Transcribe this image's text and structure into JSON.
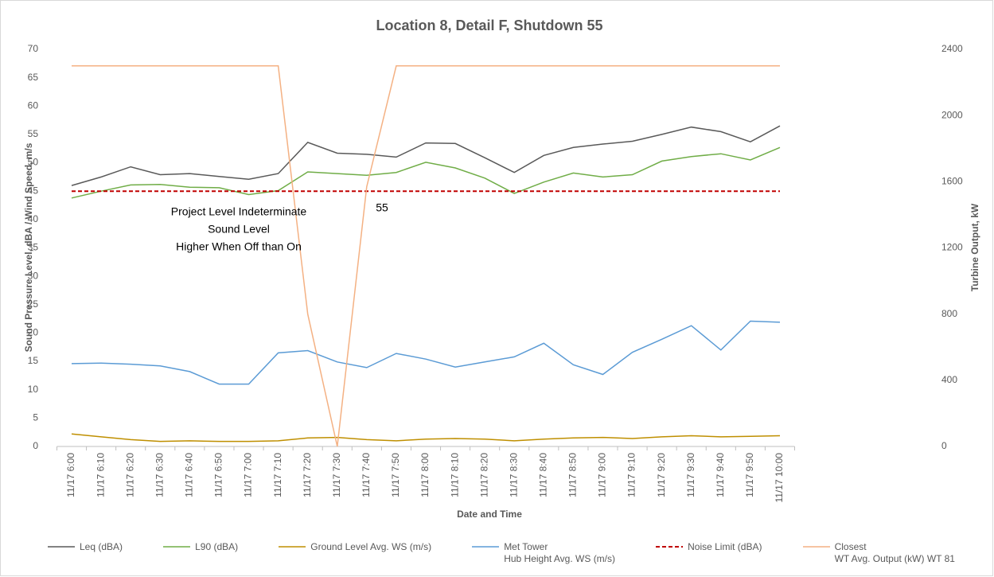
{
  "chart_data": {
    "type": "line",
    "title": "Location 8, Detail F, Shutdown 55",
    "x_label": "Date and Time",
    "y_label": "Sound Pressure Level, dBA / Wind Speed, m/s",
    "y2_label": "Turbine Output, kW",
    "categories": [
      "11/17 6:00",
      "11/17 6:10",
      "11/17 6:20",
      "11/17 6:30",
      "11/17 6:40",
      "11/17 6:50",
      "11/17 7:00",
      "11/17 7:10",
      "11/17 7:20",
      "11/17 7:30",
      "11/17 7:40",
      "11/17 7:50",
      "11/17 8:00",
      "11/17 8:10",
      "11/17 8:20",
      "11/17 8:30",
      "11/17 8:40",
      "11/17 8:50",
      "11/17 9:00",
      "11/17 9:10",
      "11/17 9:20",
      "11/17 9:30",
      "11/17 9:40",
      "11/17 9:50",
      "11/17 10:00"
    ],
    "ylim": [
      0,
      70
    ],
    "yticks": [
      0,
      5,
      10,
      15,
      20,
      25,
      30,
      35,
      40,
      45,
      50,
      55,
      60,
      65,
      70
    ],
    "y2lim": [
      0,
      2400
    ],
    "y2ticks": [
      0,
      400,
      800,
      1200,
      1600,
      2000,
      2400
    ],
    "grid": false,
    "legend": "bottom",
    "annotations": [
      "Project Level Indeterminate",
      "Sound Level",
      "Higher When Off than On",
      "55"
    ],
    "series": [
      {
        "name": "Leq (dBA)",
        "color": "#595959",
        "values": [
          46.0,
          47.5,
          49.3,
          47.9,
          48.1,
          47.6,
          47.1,
          48.1,
          53.6,
          51.7,
          51.5,
          51.0,
          53.5,
          53.4,
          50.9,
          48.3,
          51.3,
          52.7,
          53.3,
          53.8,
          55.0,
          56.3,
          55.5,
          53.7,
          56.5
        ]
      },
      {
        "name": "L90 (dBA)",
        "color": "#70ad47",
        "values": [
          43.8,
          45.0,
          46.1,
          46.2,
          45.7,
          45.6,
          44.4,
          45.1,
          48.4,
          48.1,
          47.8,
          48.3,
          50.1,
          49.1,
          47.3,
          44.6,
          46.6,
          48.2,
          47.5,
          47.9,
          50.3,
          51.1,
          51.6,
          50.5,
          52.7
        ]
      },
      {
        "name": "Ground Level Avg. WS (m/s)",
        "color": "#bf8f00",
        "values": [
          2.2,
          1.7,
          1.2,
          0.9,
          1.0,
          0.9,
          0.9,
          1.0,
          1.5,
          1.6,
          1.2,
          1.0,
          1.3,
          1.4,
          1.3,
          1.0,
          1.3,
          1.5,
          1.6,
          1.4,
          1.7,
          1.9,
          1.7,
          1.8,
          1.9
        ]
      },
      {
        "name": "Met Tower\nHub Height Avg. WS (m/s)",
        "color": "#5b9bd5",
        "values": [
          14.6,
          14.7,
          14.5,
          14.2,
          13.2,
          11.0,
          11.0,
          16.5,
          16.9,
          14.9,
          13.9,
          16.4,
          15.4,
          14.0,
          14.9,
          15.8,
          18.2,
          14.4,
          12.7,
          16.6,
          18.9,
          21.3,
          17.0,
          22.1,
          21.9
        ]
      },
      {
        "name": "Noise Limit (dBA)",
        "color": "#c00000",
        "dashed": true,
        "values": [
          45,
          45,
          45,
          45,
          45,
          45,
          45,
          45,
          45,
          45,
          45,
          45,
          45,
          45,
          45,
          45,
          45,
          45,
          45,
          45,
          45,
          45,
          45,
          45,
          45
        ]
      },
      {
        "name": "Closest\nWT Avg. Output (kW) WT 81",
        "color": "#f4b183",
        "axis": "y2",
        "values": [
          2300,
          2300,
          2300,
          2300,
          2300,
          2300,
          2300,
          2300,
          800,
          0,
          1570,
          2300,
          2300,
          2300,
          2300,
          2300,
          2300,
          2300,
          2300,
          2300,
          2300,
          2300,
          2300,
          2300,
          2300
        ]
      }
    ]
  }
}
